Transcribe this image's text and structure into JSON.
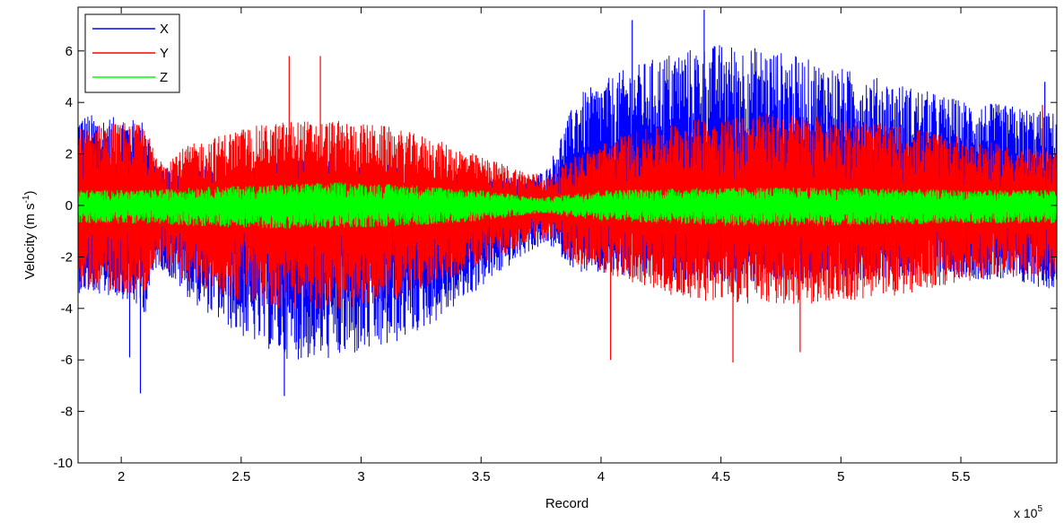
{
  "chart_data": {
    "type": "line",
    "title": "",
    "xlabel": "Record",
    "ylabel_text": "Velocity (m s",
    "ylabel_sup": "-1",
    "ylabel_close": ")",
    "x_exponent_base": "x 10",
    "x_exponent_power": "5",
    "xlim": [
      182000,
      590000
    ],
    "ylim": [
      -10,
      7.7
    ],
    "x_ticks": [
      {
        "value": 200000,
        "label": "2"
      },
      {
        "value": 250000,
        "label": "2.5"
      },
      {
        "value": 300000,
        "label": "3"
      },
      {
        "value": 350000,
        "label": "3.5"
      },
      {
        "value": 400000,
        "label": "4"
      },
      {
        "value": 450000,
        "label": "4.5"
      },
      {
        "value": 500000,
        "label": "5"
      },
      {
        "value": 550000,
        "label": "5.5"
      }
    ],
    "y_ticks": [
      {
        "value": 6,
        "label": "6"
      },
      {
        "value": 4,
        "label": "4"
      },
      {
        "value": 2,
        "label": "2"
      },
      {
        "value": 0,
        "label": "0"
      },
      {
        "value": -2,
        "label": "-2"
      },
      {
        "value": -4,
        "label": "-4"
      },
      {
        "value": -6,
        "label": "-6"
      },
      {
        "value": -8,
        "label": "-8"
      },
      {
        "value": -10,
        "label": "-10"
      }
    ],
    "grid": false,
    "legend_position": "top-left",
    "series": [
      {
        "name": "X",
        "color": "#0000ff",
        "envelope": {
          "x": [
            182000,
            200000,
            210000,
            215000,
            230000,
            250000,
            270000,
            290000,
            310000,
            330000,
            350000,
            370000,
            378000,
            390000,
            410000,
            430000,
            450000,
            470000,
            490000,
            510000,
            530000,
            550000,
            570000,
            590000
          ],
          "upper": [
            3.6,
            3.4,
            3.3,
            1.5,
            1.5,
            1.6,
            1.8,
            1.8,
            1.6,
            1.4,
            1.2,
            1.0,
            1.5,
            4.3,
            5.3,
            6.0,
            6.3,
            6.1,
            5.6,
            5.1,
            4.6,
            4.1,
            3.9,
            3.6
          ],
          "lower": [
            -3.4,
            -3.6,
            -4.2,
            -2.3,
            -3.8,
            -5.1,
            -6.0,
            -6.0,
            -5.6,
            -4.6,
            -3.2,
            -1.8,
            -1.5,
            -2.6,
            -2.8,
            -2.9,
            -3.0,
            -3.0,
            -3.0,
            -2.9,
            -2.8,
            -2.8,
            -3.0,
            -3.3
          ]
        },
        "spikes": [
          {
            "x": 208000,
            "y": -7.3
          },
          {
            "x": 203500,
            "y": -5.9
          },
          {
            "x": 268000,
            "y": -7.4
          },
          {
            "x": 443000,
            "y": 7.6
          },
          {
            "x": 413000,
            "y": 7.2
          },
          {
            "x": 585000,
            "y": 4.8
          }
        ]
      },
      {
        "name": "Y",
        "color": "#ff0000",
        "envelope": {
          "x": [
            182000,
            200000,
            210000,
            215000,
            230000,
            250000,
            270000,
            290000,
            310000,
            330000,
            350000,
            370000,
            378000,
            390000,
            410000,
            430000,
            450000,
            470000,
            490000,
            510000,
            530000,
            550000,
            570000,
            590000
          ],
          "upper": [
            3.0,
            3.3,
            3.1,
            1.8,
            2.4,
            3.0,
            3.3,
            3.3,
            3.1,
            2.6,
            1.9,
            1.3,
            1.2,
            2.0,
            2.8,
            3.2,
            3.5,
            3.6,
            3.5,
            3.3,
            3.0,
            2.7,
            2.3,
            2.1
          ],
          "lower": [
            -3.2,
            -3.4,
            -3.5,
            -2.3,
            -3.1,
            -3.8,
            -4.1,
            -4.1,
            -3.8,
            -3.1,
            -2.3,
            -1.5,
            -1.3,
            -2.3,
            -2.9,
            -3.5,
            -3.8,
            -3.9,
            -3.8,
            -3.7,
            -3.4,
            -3.0,
            -2.7,
            -3.0
          ]
        },
        "spikes": [
          {
            "x": 270000,
            "y": 5.8
          },
          {
            "x": 283000,
            "y": 5.8
          },
          {
            "x": 404000,
            "y": -6.0
          },
          {
            "x": 455000,
            "y": -6.1
          },
          {
            "x": 483000,
            "y": -5.7
          },
          {
            "x": 584000,
            "y": 3.9
          }
        ]
      },
      {
        "name": "Z",
        "color": "#00ff00",
        "envelope": {
          "x": [
            182000,
            210000,
            230000,
            260000,
            290000,
            320000,
            350000,
            375000,
            400000,
            450000,
            500000,
            550000,
            590000
          ],
          "upper": [
            0.6,
            0.6,
            0.7,
            0.8,
            0.9,
            0.8,
            0.6,
            0.3,
            0.6,
            0.7,
            0.7,
            0.6,
            0.6
          ],
          "lower": [
            -0.7,
            -0.7,
            -0.8,
            -0.9,
            -0.9,
            -0.8,
            -0.6,
            -0.3,
            -0.6,
            -0.8,
            -0.8,
            -0.7,
            -0.7
          ]
        },
        "spikes": []
      }
    ]
  }
}
